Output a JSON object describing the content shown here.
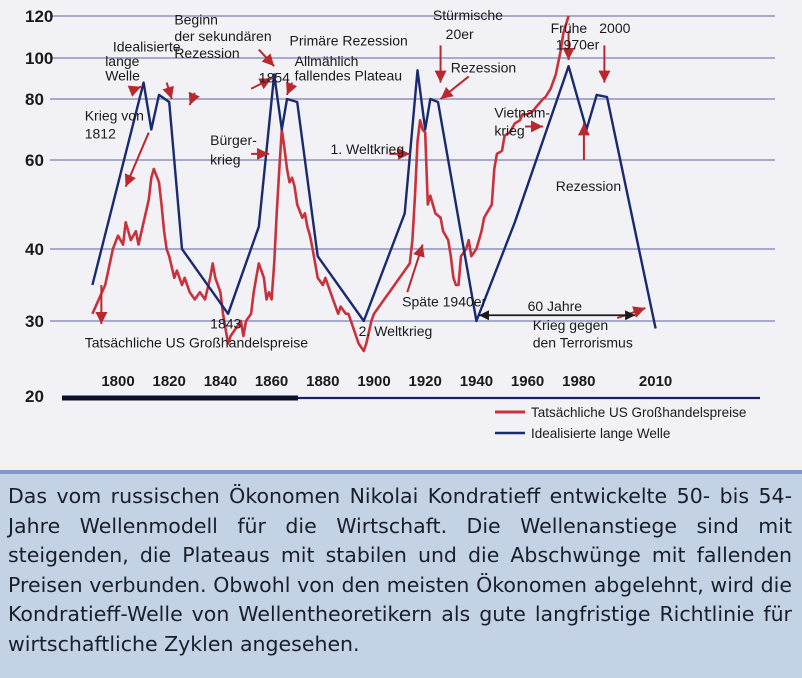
{
  "chart_data": {
    "type": "line",
    "title": "",
    "xlabel": "",
    "ylabel": "",
    "x_ticks": [
      "1800",
      "1820",
      "1840",
      "1860",
      "1880",
      "1900",
      "1920",
      "1940",
      "1960",
      "1980",
      "2010"
    ],
    "y_ticks": [
      "20",
      "30",
      "40",
      "60",
      "80",
      "100",
      "120"
    ],
    "xlim": [
      1789,
      2012
    ],
    "legend_position": "bottom-right",
    "series": [
      {
        "name": "Tatsächliche US Großhandelspreise",
        "color": "#c8323c",
        "points": [
          [
            1790,
            31
          ],
          [
            1795,
            35
          ],
          [
            1798,
            40
          ],
          [
            1800,
            43
          ],
          [
            1802,
            41
          ],
          [
            1803,
            46
          ],
          [
            1805,
            42
          ],
          [
            1807,
            44
          ],
          [
            1808,
            41
          ],
          [
            1810,
            46
          ],
          [
            1812,
            51
          ],
          [
            1813,
            56
          ],
          [
            1814,
            58
          ],
          [
            1816,
            55
          ],
          [
            1817,
            50
          ],
          [
            1818,
            44
          ],
          [
            1819,
            40
          ],
          [
            1820,
            39
          ],
          [
            1822,
            36
          ],
          [
            1823,
            37
          ],
          [
            1825,
            35
          ],
          [
            1826,
            36
          ],
          [
            1828,
            34
          ],
          [
            1830,
            33
          ],
          [
            1832,
            34
          ],
          [
            1834,
            33
          ],
          [
            1836,
            36
          ],
          [
            1837,
            38
          ],
          [
            1838,
            36
          ],
          [
            1840,
            34
          ],
          [
            1841,
            31
          ],
          [
            1842,
            29
          ],
          [
            1843,
            27
          ],
          [
            1844,
            28
          ],
          [
            1846,
            29
          ],
          [
            1848,
            30
          ],
          [
            1849,
            28
          ],
          [
            1850,
            30
          ],
          [
            1852,
            31
          ],
          [
            1853,
            34
          ],
          [
            1854,
            36
          ],
          [
            1855,
            38
          ],
          [
            1857,
            36
          ],
          [
            1858,
            33
          ],
          [
            1859,
            34
          ],
          [
            1860,
            33
          ],
          [
            1861,
            38
          ],
          [
            1862,
            48
          ],
          [
            1863,
            58
          ],
          [
            1864,
            70
          ],
          [
            1865,
            64
          ],
          [
            1866,
            58
          ],
          [
            1867,
            55
          ],
          [
            1868,
            56
          ],
          [
            1869,
            54
          ],
          [
            1870,
            50
          ],
          [
            1872,
            47
          ],
          [
            1873,
            48
          ],
          [
            1874,
            45
          ],
          [
            1875,
            43
          ],
          [
            1876,
            40
          ],
          [
            1878,
            36
          ],
          [
            1880,
            35
          ],
          [
            1881,
            36
          ],
          [
            1882,
            35
          ],
          [
            1884,
            33
          ],
          [
            1886,
            31
          ],
          [
            1887,
            32
          ],
          [
            1889,
            31
          ],
          [
            1890,
            31
          ],
          [
            1892,
            29
          ],
          [
            1894,
            27
          ],
          [
            1896,
            26
          ],
          [
            1897,
            27
          ],
          [
            1899,
            30
          ],
          [
            1900,
            31
          ],
          [
            1902,
            32
          ],
          [
            1904,
            33
          ],
          [
            1906,
            34
          ],
          [
            1908,
            35
          ],
          [
            1910,
            36
          ],
          [
            1912,
            37
          ],
          [
            1914,
            38
          ],
          [
            1915,
            42
          ],
          [
            1916,
            52
          ],
          [
            1917,
            66
          ],
          [
            1918,
            73
          ],
          [
            1919,
            70
          ],
          [
            1920,
            69
          ],
          [
            1921,
            50
          ],
          [
            1922,
            52
          ],
          [
            1924,
            48
          ],
          [
            1926,
            47
          ],
          [
            1927,
            44
          ],
          [
            1929,
            42
          ],
          [
            1930,
            39
          ],
          [
            1931,
            36
          ],
          [
            1932,
            35
          ],
          [
            1933,
            35
          ],
          [
            1934,
            39
          ],
          [
            1936,
            40
          ],
          [
            1937,
            42
          ],
          [
            1938,
            39
          ],
          [
            1940,
            40
          ],
          [
            1942,
            44
          ],
          [
            1943,
            47
          ],
          [
            1944,
            48
          ],
          [
            1946,
            50
          ],
          [
            1947,
            58
          ],
          [
            1948,
            62
          ],
          [
            1950,
            63
          ],
          [
            1951,
            68
          ],
          [
            1953,
            69
          ],
          [
            1955,
            72
          ],
          [
            1957,
            73
          ],
          [
            1958,
            75
          ],
          [
            1960,
            75
          ],
          [
            1962,
            76
          ],
          [
            1964,
            78
          ],
          [
            1966,
            80
          ],
          [
            1967,
            81
          ],
          [
            1969,
            85
          ],
          [
            1971,
            92
          ],
          [
            1973,
            104
          ],
          [
            1974,
            112
          ],
          [
            1976,
            120
          ]
        ]
      },
      {
        "name": "Idealisierte lange Welle",
        "color": "#1a2a6e",
        "points": [
          [
            1790,
            35
          ],
          [
            1810,
            88
          ],
          [
            1813,
            70
          ],
          [
            1816,
            82
          ],
          [
            1820,
            79
          ],
          [
            1825,
            40
          ],
          [
            1843,
            31
          ],
          [
            1855,
            45
          ],
          [
            1861,
            92
          ],
          [
            1864,
            70
          ],
          [
            1866,
            80
          ],
          [
            1870,
            79
          ],
          [
            1878,
            39
          ],
          [
            1896,
            30
          ],
          [
            1912,
            48
          ],
          [
            1917,
            94
          ],
          [
            1920,
            70
          ],
          [
            1922,
            80
          ],
          [
            1925,
            79
          ],
          [
            1940,
            30
          ],
          [
            1955,
            46
          ],
          [
            1976,
            96
          ],
          [
            1983,
            70
          ],
          [
            1987,
            82
          ],
          [
            1991,
            81
          ],
          [
            2010,
            29
          ]
        ]
      }
    ],
    "annotations": [
      {
        "text": "Idealisierte",
        "x": 1798,
        "y": 103
      },
      {
        "text": "lange",
        "x": 1795,
        "y": 96
      },
      {
        "text": "Welle",
        "x": 1795,
        "y": 89
      },
      {
        "text": "Krieg von",
        "x": 1787,
        "y": 73
      },
      {
        "text": "1812",
        "x": 1787,
        "y": 67
      },
      {
        "text": "Beginn",
        "x": 1822,
        "y": 116
      },
      {
        "text": "der sekundären",
        "x": 1822,
        "y": 108
      },
      {
        "text": "Rezession",
        "x": 1822,
        "y": 100
      },
      {
        "text": "Bürger-",
        "x": 1836,
        "y": 65
      },
      {
        "text": "krieg",
        "x": 1836,
        "y": 59
      },
      {
        "text": "1843",
        "x": 1836,
        "y": 29
      },
      {
        "text": "Tatsächliche US Großhandelspreise",
        "x": 1787,
        "y": 26.5
      },
      {
        "text": "Primäre Rezession",
        "x": 1867,
        "y": 106
      },
      {
        "text": "1854",
        "x": 1855,
        "y": 88
      },
      {
        "text": "Allmählich",
        "x": 1869,
        "y": 96
      },
      {
        "text": "fallendes Plateau",
        "x": 1869,
        "y": 89
      },
      {
        "text": "1. Weltkrieg",
        "x": 1883,
        "y": 62
      },
      {
        "text": "Stürmische",
        "x": 1923,
        "y": 118
      },
      {
        "text": "20er",
        "x": 1928,
        "y": 109
      },
      {
        "text": "Rezession",
        "x": 1930,
        "y": 93
      },
      {
        "text": "Späte 1940er",
        "x": 1911,
        "y": 32
      },
      {
        "text": "2. Weltkrieg",
        "x": 1894,
        "y": 28
      },
      {
        "text": "Vietnam-",
        "x": 1947,
        "y": 74
      },
      {
        "text": "krieg",
        "x": 1947,
        "y": 68
      },
      {
        "text": "Frühe",
        "x": 1969,
        "y": 112
      },
      {
        "text": "1970er",
        "x": 1971,
        "y": 104
      },
      {
        "text": "2000",
        "x": 1988,
        "y": 112
      },
      {
        "text": "Rezession",
        "x": 1971,
        "y": 53
      },
      {
        "text": "60 Jahre",
        "x": 1960,
        "y": 31.4
      },
      {
        "text": "Krieg gegen",
        "x": 1962,
        "y": 28.8
      },
      {
        "text": "den Terrorismus",
        "x": 1962,
        "y": 26.5
      }
    ]
  },
  "caption": "Das vom russischen Ökonomen Nikolai Kondratieff  entwickelte 50- bis 54-Jahre Wellenmodell für die Wirtschaft. Die Wellenanstiege sind mit steigenden, die Plateaus mit stabilen und die Abschwünge mit fallenden Preisen verbunden. Obwohl von den meisten Ökonomen abgelehnt, wird die Kondratieff-Welle von Wellentheoretikern als gute langfristige Richtlinie für wirtschaftliche Zyklen angesehen."
}
